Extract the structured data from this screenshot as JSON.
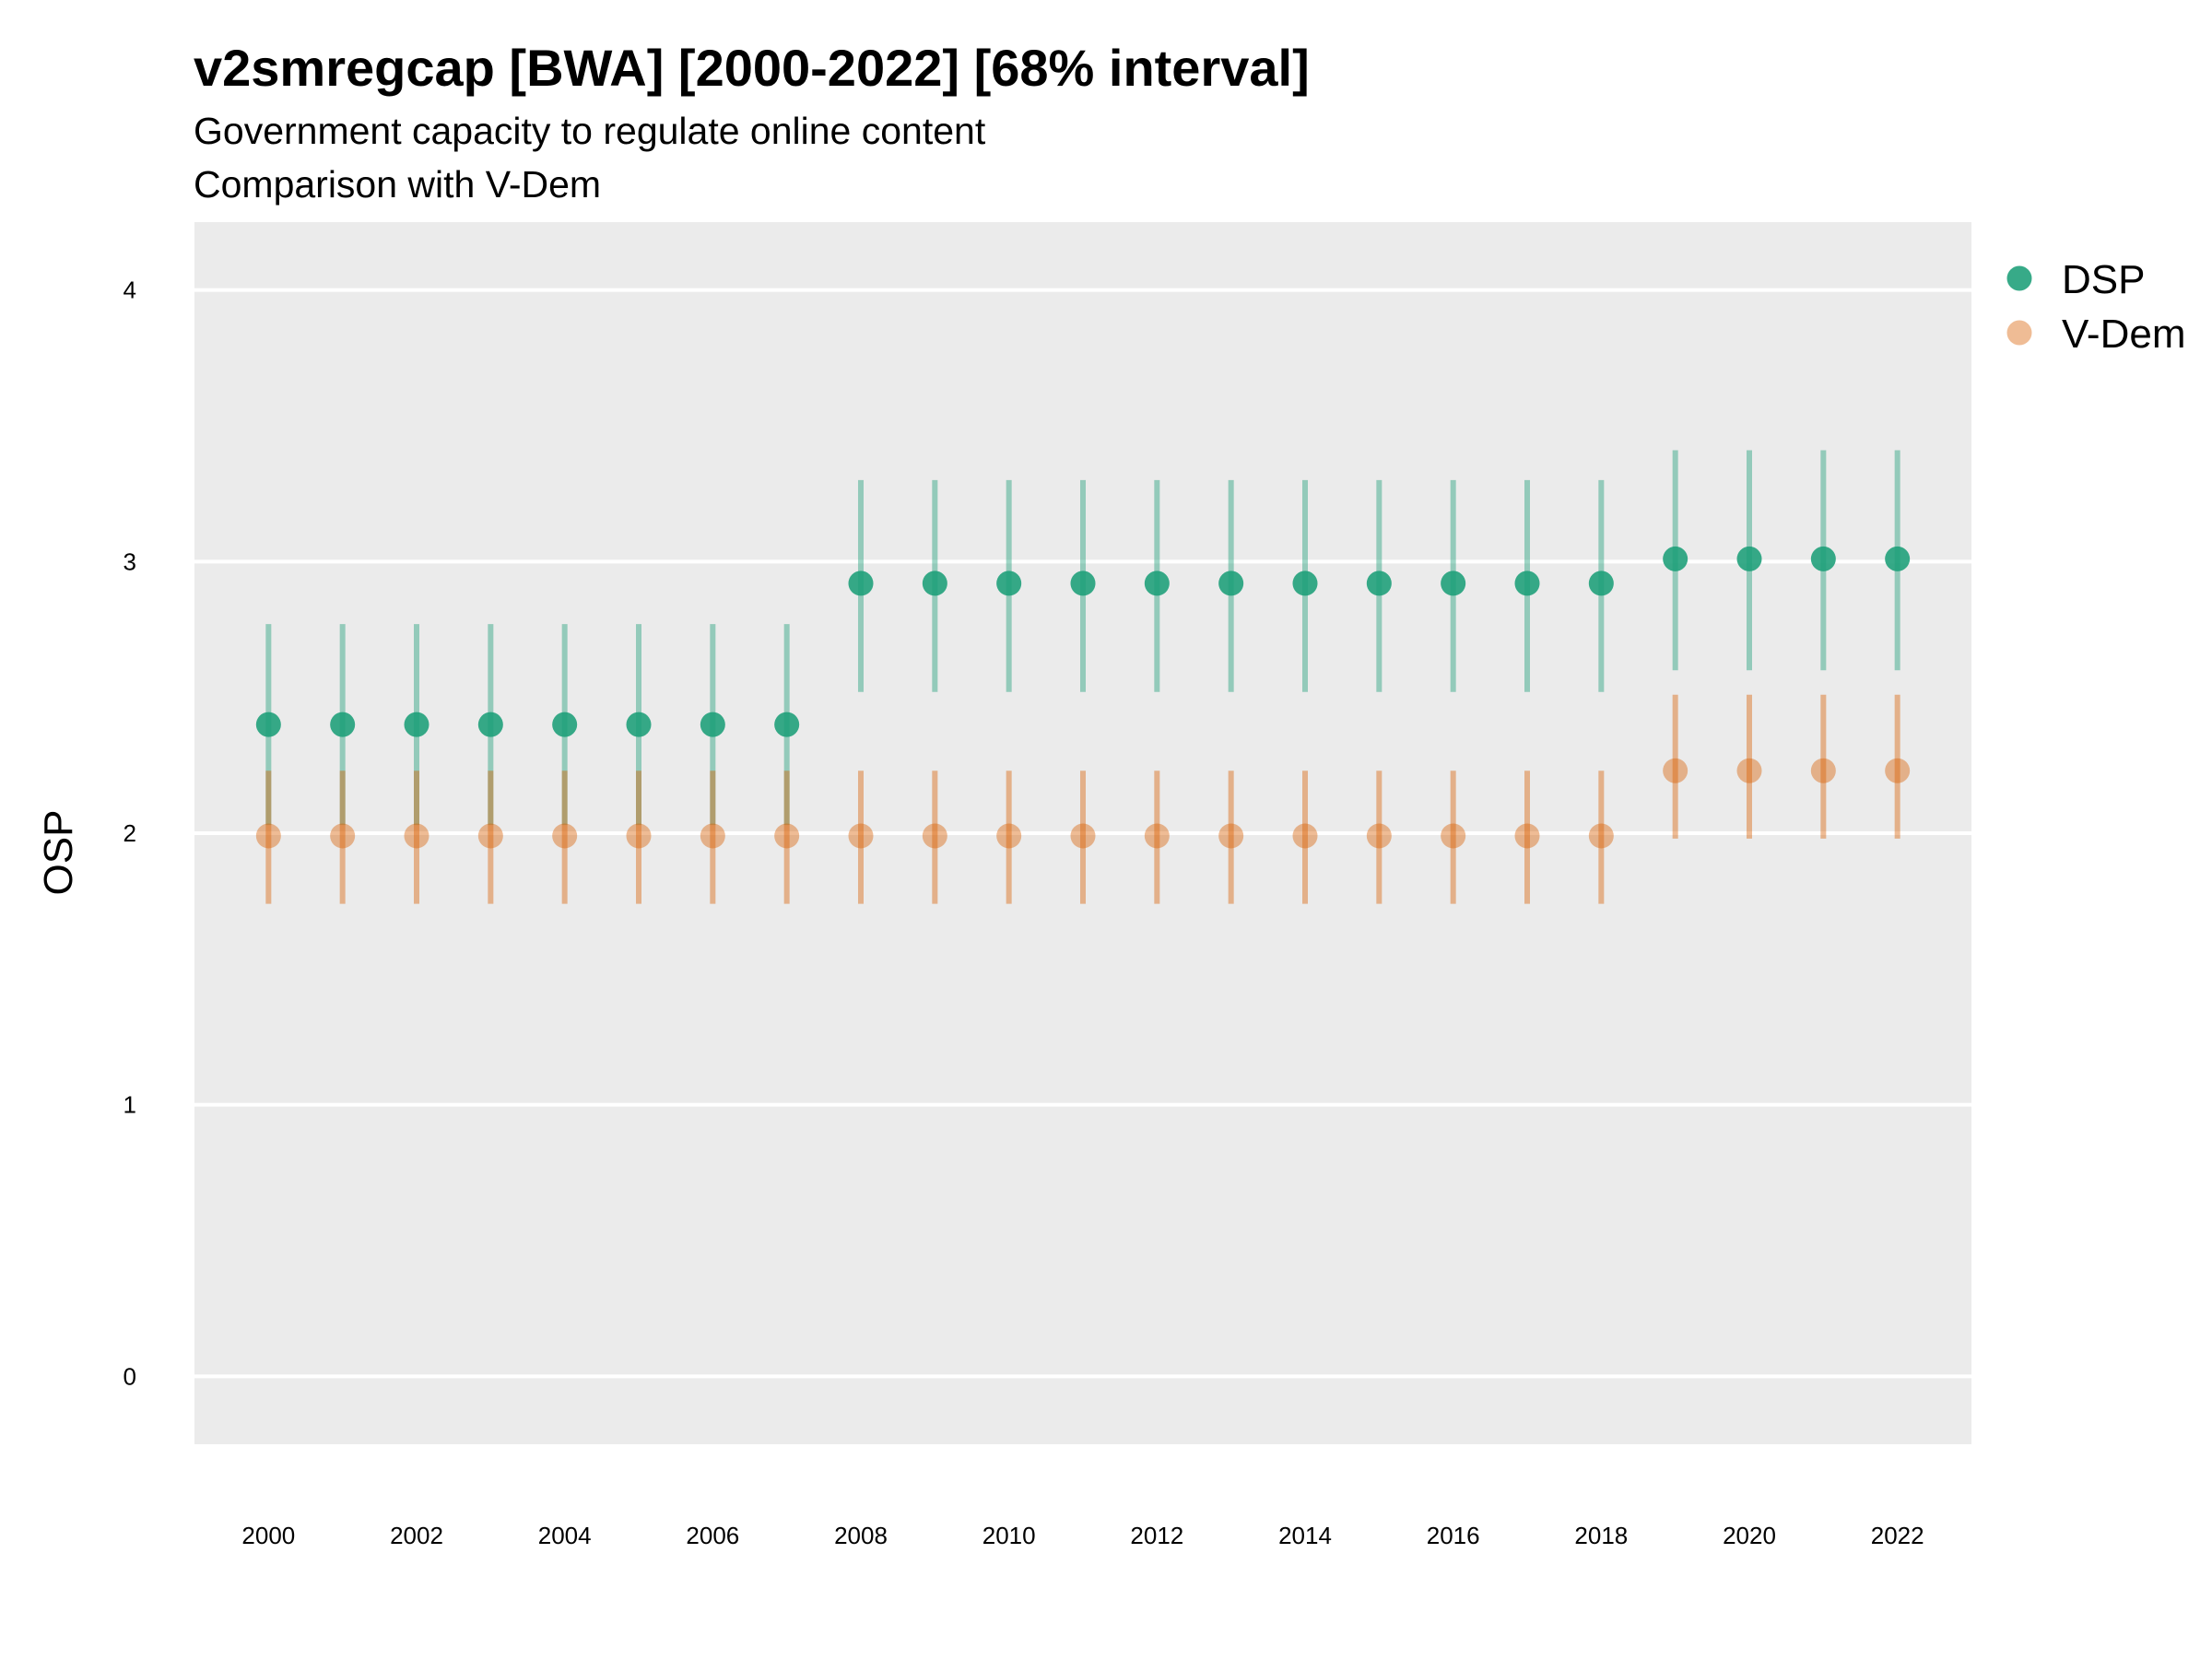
{
  "chart_data": {
    "type": "scatter",
    "title": "v2smregcap [BWA] [2000-2022] [68% interval]",
    "subtitle_lines": [
      "Government capacity to regulate online content",
      "Comparison with V-Dem"
    ],
    "xlabel": "",
    "ylabel": "OSP",
    "x_ticks": [
      "2000",
      "2002",
      "2004",
      "2006",
      "2008",
      "2010",
      "2012",
      "2014",
      "2016",
      "2018",
      "2020",
      "2022"
    ],
    "y_ticks": [
      "0",
      "1",
      "2",
      "3",
      "4"
    ],
    "xlim": [
      1999,
      2023
    ],
    "ylim": [
      -0.25,
      4.25
    ],
    "grid": true,
    "legend_position": "right",
    "x": [
      2000,
      2001,
      2002,
      2003,
      2004,
      2005,
      2006,
      2007,
      2008,
      2009,
      2010,
      2011,
      2012,
      2013,
      2014,
      2015,
      2016,
      2017,
      2018,
      2019,
      2020,
      2021,
      2022
    ],
    "series": [
      {
        "name": "DSP",
        "color": "#1b9e77",
        "values": [
          2.4,
          2.4,
          2.4,
          2.4,
          2.4,
          2.4,
          2.4,
          2.4,
          2.92,
          2.92,
          2.92,
          2.92,
          2.92,
          2.92,
          2.92,
          2.92,
          2.92,
          2.92,
          2.92,
          3.01,
          3.01,
          3.01,
          3.01
        ],
        "lower": [
          2.03,
          2.03,
          2.03,
          2.03,
          2.03,
          2.03,
          2.03,
          2.03,
          2.52,
          2.52,
          2.52,
          2.52,
          2.52,
          2.52,
          2.52,
          2.52,
          2.52,
          2.52,
          2.52,
          2.6,
          2.6,
          2.6,
          2.6
        ],
        "upper": [
          2.77,
          2.77,
          2.77,
          2.77,
          2.77,
          2.77,
          2.77,
          2.77,
          3.3,
          3.3,
          3.3,
          3.3,
          3.3,
          3.3,
          3.3,
          3.3,
          3.3,
          3.3,
          3.3,
          3.41,
          3.41,
          3.41,
          3.41
        ]
      },
      {
        "name": "V-Dem",
        "color": "#d95f02",
        "values": [
          1.99,
          1.99,
          1.99,
          1.99,
          1.99,
          1.99,
          1.99,
          1.99,
          1.99,
          1.99,
          1.99,
          1.99,
          1.99,
          1.99,
          1.99,
          1.99,
          1.99,
          1.99,
          1.99,
          2.23,
          2.23,
          2.23,
          2.23
        ],
        "lower": [
          1.74,
          1.74,
          1.74,
          1.74,
          1.74,
          1.74,
          1.74,
          1.74,
          1.74,
          1.74,
          1.74,
          1.74,
          1.74,
          1.74,
          1.74,
          1.74,
          1.74,
          1.74,
          1.74,
          1.98,
          1.98,
          1.98,
          1.98
        ],
        "upper": [
          2.23,
          2.23,
          2.23,
          2.23,
          2.23,
          2.23,
          2.23,
          2.23,
          2.23,
          2.23,
          2.23,
          2.23,
          2.23,
          2.23,
          2.23,
          2.23,
          2.23,
          2.23,
          2.23,
          2.51,
          2.51,
          2.51,
          2.51
        ]
      }
    ]
  }
}
